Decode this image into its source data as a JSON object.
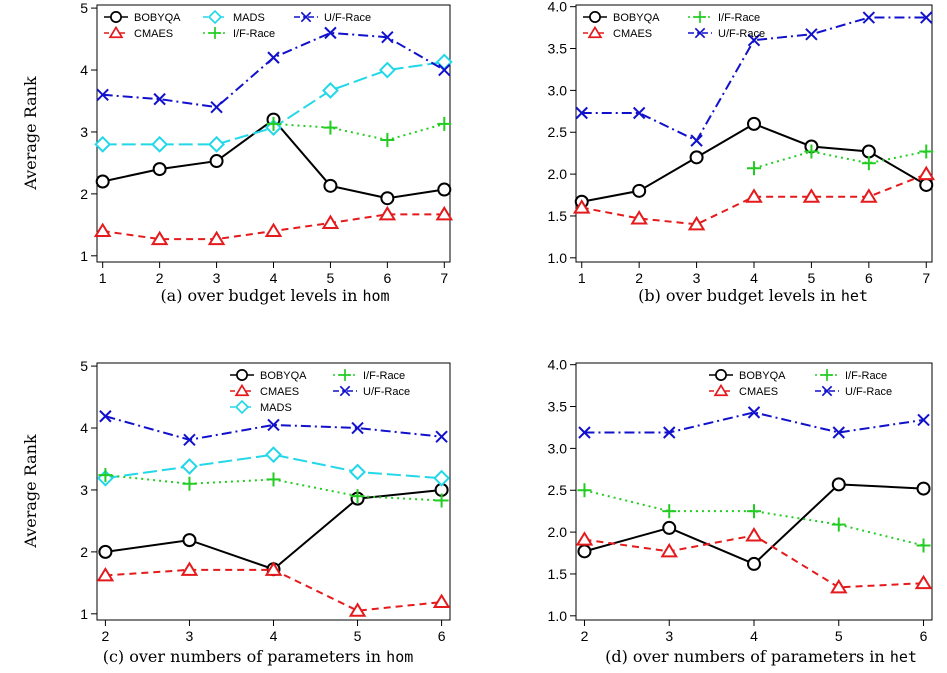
{
  "colors": {
    "BOBYQA": "#000000",
    "CMAES": "#e41a1c",
    "MADS": "#22d8e8",
    "I/F-Race": "#22cc22",
    "U/F-Race": "#1111cc"
  },
  "chart_data": [
    {
      "type": "line",
      "caption": "(a) over budget levels in ",
      "caption_code": "hom",
      "ylabel": "Average Rank",
      "x": [
        1,
        2,
        3,
        4,
        5,
        6,
        7
      ],
      "xlim": [
        0.9,
        7.1
      ],
      "ylim": [
        0.9,
        5.05
      ],
      "yticks": [
        1,
        2,
        3,
        4,
        5
      ],
      "ytick_labels": [
        "1",
        "2",
        "3",
        "4",
        "5"
      ],
      "xtick_labels": [
        "1",
        "2",
        "3",
        "4",
        "5",
        "6",
        "7"
      ],
      "legend_layout": "grid3",
      "legend_placement": "top",
      "series": [
        {
          "name": "BOBYQA",
          "values": [
            2.2,
            2.4,
            2.53,
            3.2,
            2.13,
            1.93,
            2.07
          ]
        },
        {
          "name": "CMAES",
          "values": [
            1.4,
            1.27,
            1.27,
            1.4,
            1.53,
            1.67,
            1.67
          ]
        },
        {
          "name": "MADS",
          "values": [
            2.8,
            2.8,
            2.8,
            3.07,
            3.67,
            4.0,
            4.13
          ]
        },
        {
          "name": "I/F-Race",
          "values": [
            null,
            null,
            null,
            3.13,
            3.07,
            2.87,
            3.13
          ]
        },
        {
          "name": "U/F-Race",
          "values": [
            3.6,
            3.53,
            3.4,
            4.2,
            4.6,
            4.53,
            4.0
          ]
        }
      ]
    },
    {
      "type": "line",
      "caption": "(b) over budget levels in ",
      "caption_code": "het",
      "ylabel": "",
      "x": [
        1,
        2,
        3,
        4,
        5,
        6,
        7
      ],
      "xlim": [
        0.9,
        7.1
      ],
      "ylim": [
        0.95,
        4.02
      ],
      "yticks": [
        1.0,
        1.5,
        2.0,
        2.5,
        3.0,
        3.5,
        4.0
      ],
      "ytick_labels": [
        "1.0",
        "1.5",
        "2.0",
        "2.5",
        "3.0",
        "3.5",
        "4.0"
      ],
      "xtick_labels": [
        "1",
        "2",
        "3",
        "4",
        "5",
        "6",
        "7"
      ],
      "legend_layout": "grid2",
      "legend_placement": "top",
      "series": [
        {
          "name": "BOBYQA",
          "values": [
            1.67,
            1.8,
            2.2,
            2.6,
            2.33,
            2.27,
            1.87
          ]
        },
        {
          "name": "CMAES",
          "values": [
            1.6,
            1.47,
            1.4,
            1.73,
            1.73,
            1.73,
            2.0
          ]
        },
        {
          "name": "I/F-Race",
          "values": [
            null,
            null,
            null,
            2.07,
            2.27,
            2.13,
            2.27
          ]
        },
        {
          "name": "U/F-Race",
          "values": [
            2.73,
            2.73,
            2.4,
            3.6,
            3.67,
            3.87,
            3.87
          ]
        }
      ]
    },
    {
      "type": "line",
      "caption": "(c) over numbers of parameters in ",
      "caption_code": "hom",
      "ylabel": "Average Rank",
      "x": [
        2,
        3,
        4,
        5,
        6
      ],
      "xlim": [
        1.9,
        6.1
      ],
      "ylim": [
        0.9,
        5.05
      ],
      "yticks": [
        1,
        2,
        3,
        4,
        5
      ],
      "ytick_labels": [
        "1",
        "2",
        "3",
        "4",
        "5"
      ],
      "xtick_labels": [
        "2",
        "3",
        "4",
        "5",
        "6"
      ],
      "legend_layout": "grid2right3",
      "legend_placement": "top-right",
      "series": [
        {
          "name": "BOBYQA",
          "values": [
            2.0,
            2.19,
            1.72,
            2.86,
            3.0
          ]
        },
        {
          "name": "CMAES",
          "values": [
            1.62,
            1.71,
            1.71,
            1.05,
            1.19
          ]
        },
        {
          "name": "MADS",
          "values": [
            3.19,
            3.38,
            3.57,
            3.29,
            3.19
          ]
        },
        {
          "name": "I/F-Race",
          "values": [
            3.24,
            3.1,
            3.17,
            2.9,
            2.83
          ]
        },
        {
          "name": "U/F-Race",
          "values": [
            4.19,
            3.81,
            4.05,
            4.0,
            3.86
          ]
        }
      ]
    },
    {
      "type": "line",
      "caption": "(d) over numbers of parameters in ",
      "caption_code": "het",
      "ylabel": "",
      "x": [
        2,
        3,
        4,
        5,
        6
      ],
      "xlim": [
        1.9,
        6.1
      ],
      "ylim": [
        0.95,
        4.02
      ],
      "yticks": [
        1.0,
        1.5,
        2.0,
        2.5,
        3.0,
        3.5,
        4.0
      ],
      "ytick_labels": [
        "1.0",
        "1.5",
        "2.0",
        "2.5",
        "3.0",
        "3.5",
        "4.0"
      ],
      "xtick_labels": [
        "2",
        "3",
        "4",
        "5",
        "6"
      ],
      "legend_layout": "grid2right",
      "legend_placement": "top-right",
      "series": [
        {
          "name": "BOBYQA",
          "values": [
            1.77,
            2.05,
            1.62,
            2.57,
            2.52
          ]
        },
        {
          "name": "CMAES",
          "values": [
            1.91,
            1.77,
            1.96,
            1.34,
            1.39
          ]
        },
        {
          "name": "I/F-Race",
          "values": [
            2.5,
            2.25,
            2.25,
            2.09,
            1.84
          ]
        },
        {
          "name": "U/F-Race",
          "values": [
            3.19,
            3.19,
            3.43,
            3.19,
            3.34
          ]
        }
      ]
    }
  ]
}
